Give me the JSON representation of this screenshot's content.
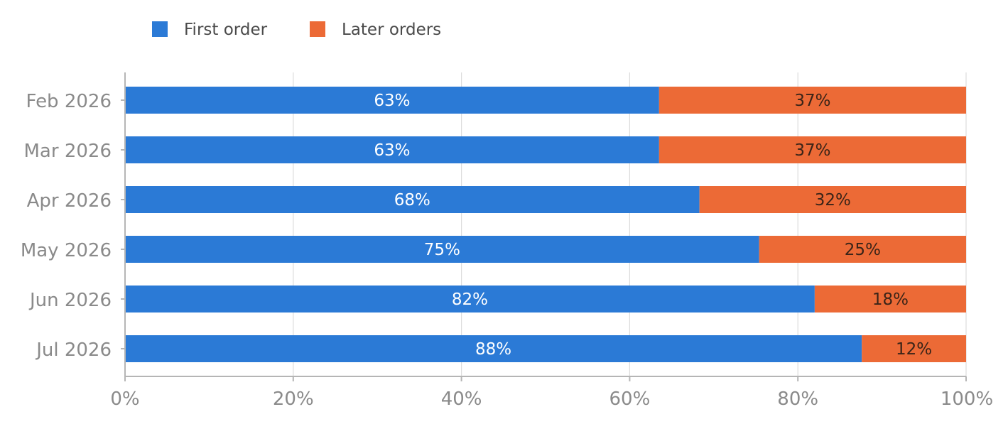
{
  "chart_data": {
    "type": "bar",
    "orientation": "horizontal",
    "stacked": true,
    "categories": [
      "Feb 2026",
      "Mar 2026",
      "Apr 2026",
      "May 2026",
      "Jun 2026",
      "Jul 2026"
    ],
    "series": [
      {
        "name": "First order",
        "color": "#2b7ad6",
        "label_color": "#ffffff",
        "values": [
          63.5,
          63.5,
          68.3,
          75.4,
          82.0,
          87.6
        ],
        "labels": [
          "63%",
          "63%",
          "68%",
          "75%",
          "82%",
          "88%"
        ]
      },
      {
        "name": "Later orders",
        "color": "#ec6a36",
        "label_color": "#3a2418",
        "values": [
          36.5,
          36.5,
          31.7,
          24.6,
          18.0,
          12.4
        ],
        "labels": [
          "37%",
          "37%",
          "32%",
          "25%",
          "18%",
          "12%"
        ]
      }
    ],
    "xlim": [
      0,
      100
    ],
    "x_ticks": [
      0,
      20,
      40,
      60,
      80,
      100
    ],
    "x_tick_labels": [
      "0%",
      "20%",
      "40%",
      "60%",
      "80%",
      "100%"
    ],
    "grid": "vertical",
    "legend": "top-left",
    "title": "",
    "xlabel": "",
    "ylabel": ""
  }
}
